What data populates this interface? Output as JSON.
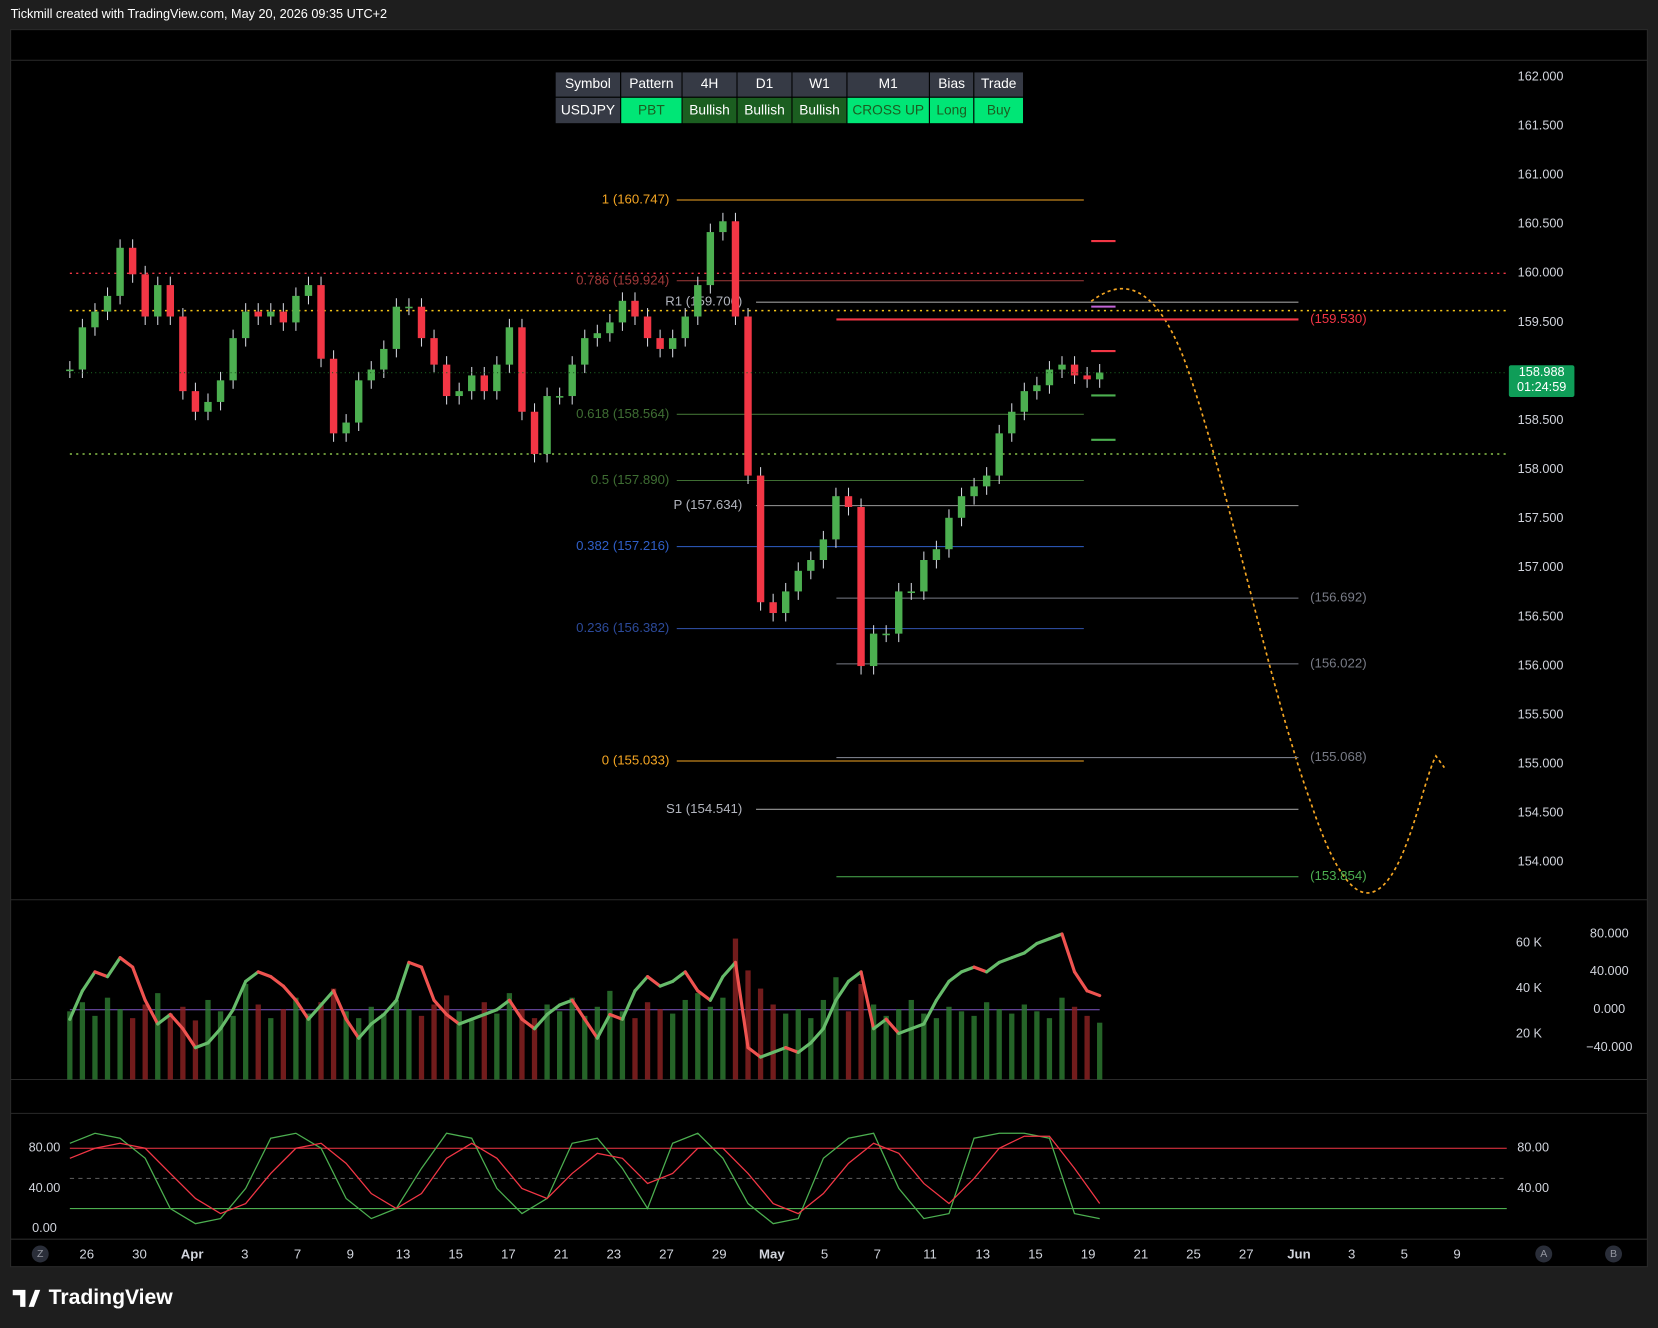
{
  "header": {
    "title": "Tickmill created with TradingView.com, May 20, 2026 09:35 UTC+2"
  },
  "table": {
    "headers": [
      "Symbol",
      "Pattern",
      "4H",
      "D1",
      "W1",
      "M1",
      "Bias",
      "Trade"
    ],
    "rows": [
      [
        "USDJPY",
        "PBT",
        "Bullish",
        "Bullish",
        "Bullish",
        "CROSS UP",
        "Long",
        "Buy"
      ]
    ],
    "cell_colors": [
      "#363a45",
      "#00e676",
      "#1b5e20",
      "#1b5e20",
      "#1b5e20",
      "#00e676",
      "#00e676",
      "#00e676"
    ],
    "text_colors": [
      "#ffffff",
      "#1b5e20",
      "#ffffff",
      "#ffffff",
      "#ffffff",
      "#1b5e20",
      "#1b5e20",
      "#1b5e20"
    ]
  },
  "chart_data": [
    {
      "type": "candlestick",
      "values": [
        159.02,
        159.45,
        159.61,
        159.77,
        160.26,
        159.99,
        159.56,
        159.88,
        159.56,
        158.8,
        158.59,
        158.69,
        158.91,
        159.34,
        159.61,
        159.56,
        159.61,
        159.5,
        159.77,
        159.88,
        159.13,
        158.37,
        158.48,
        158.91,
        159.02,
        159.23,
        159.66,
        159.66,
        159.34,
        159.07,
        158.75,
        158.8,
        158.96,
        158.8,
        159.07,
        159.45,
        158.59,
        158.16,
        158.75,
        158.75,
        159.07,
        159.34,
        159.39,
        159.5,
        159.72,
        159.56,
        159.34,
        159.23,
        159.34,
        159.56,
        159.88,
        160.42,
        160.53,
        159.56,
        157.94,
        156.65,
        156.54,
        156.76,
        156.97,
        157.08,
        157.29,
        157.73,
        157.62,
        156.0,
        156.33,
        156.33,
        156.76,
        156.76,
        157.08,
        157.19,
        157.51,
        157.73,
        157.83,
        157.94,
        158.37,
        158.59,
        158.8,
        158.86,
        159.02,
        159.07,
        158.96,
        158.92,
        158.99
      ],
      "up_color": "#4caf50",
      "down_color": "#f23645",
      "ylim": [
        153.63,
        162.17
      ],
      "yticks": [
        {
          "value": 162,
          "label": "162.000"
        },
        {
          "value": 161.5,
          "label": "161.500"
        },
        {
          "value": 161,
          "label": "161.000"
        },
        {
          "value": 160.5,
          "label": "160.500"
        },
        {
          "value": 160,
          "label": "160.000"
        },
        {
          "value": 159.5,
          "label": "159.500"
        },
        {
          "value": 159,
          "label": "159.000"
        },
        {
          "value": 158.5,
          "label": "158.500"
        },
        {
          "value": 158,
          "label": "158.000"
        },
        {
          "value": 157.5,
          "label": "157.500"
        },
        {
          "value": 157,
          "label": "157.000"
        },
        {
          "value": 156.5,
          "label": "156.500"
        },
        {
          "value": 156,
          "label": "156.000"
        },
        {
          "value": 155.5,
          "label": "155.500"
        },
        {
          "value": 155,
          "label": "155.000"
        },
        {
          "value": 154.5,
          "label": "154.500"
        },
        {
          "value": 154,
          "label": "154.000"
        }
      ],
      "last_price": 158.988,
      "countdown": "01:24:59",
      "last_color": "#0f9d58",
      "fib_levels": [
        {
          "value": 160.747,
          "label": "1 (160.747)",
          "color": "#f5a623"
        },
        {
          "value": 159.924,
          "label": "0.786 (159.924)",
          "color": "#a13a3a"
        },
        {
          "value": 158.564,
          "label": "0.618 (158.564)",
          "color": "#3f6e33"
        },
        {
          "value": 157.89,
          "label": "0.5 (157.890)",
          "color": "#3f6e33"
        },
        {
          "value": 157.216,
          "label": "0.382 (157.216)",
          "color": "#2f5fc8"
        },
        {
          "value": 156.382,
          "label": "0.236 (156.382)",
          "color": "#2c4a9a"
        },
        {
          "value": 155.033,
          "label": "0 (155.033)",
          "color": "#f5a623"
        }
      ],
      "pivots": [
        {
          "value": 159.706,
          "label": "R1 (159.706)"
        },
        {
          "value": 157.634,
          "label": "P (157.634)"
        },
        {
          "value": 154.541,
          "label": "S1 (154.541)"
        }
      ],
      "targets": [
        {
          "value": 159.53,
          "label": "(159.530)",
          "color": "#f23645"
        },
        {
          "value": 156.692,
          "label": "(156.692)",
          "color": "#787b86"
        },
        {
          "value": 156.022,
          "label": "(156.022)",
          "color": "#787b86"
        },
        {
          "value": 155.068,
          "label": "(155.068)",
          "color": "#787b86"
        },
        {
          "value": 153.854,
          "label": "(153.854)",
          "color": "#4caf50"
        }
      ],
      "dotted_levels": [
        {
          "value": 160.0,
          "color": "#f23645"
        },
        {
          "value": 159.62,
          "color": "#f5c518"
        },
        {
          "value": 158.16,
          "color": "#8bc34a"
        }
      ],
      "grid": false
    },
    {
      "type": "bar",
      "values": [
        30000,
        34000,
        28000,
        36000,
        31000,
        27000,
        33000,
        38000,
        29000,
        32000,
        26000,
        35000,
        30000,
        28000,
        42000,
        33000,
        27000,
        31000,
        36000,
        29000,
        34000,
        40000,
        30000,
        27000,
        32000,
        29000,
        35000,
        31000,
        28000,
        33000,
        37000,
        30000,
        26000,
        34000,
        29000,
        38000,
        31000,
        27000,
        33000,
        30000,
        36000,
        28000,
        32000,
        39000,
        30000,
        27000,
        34000,
        31000,
        29000,
        35000,
        38000,
        32000,
        36000,
        62000,
        48000,
        40000,
        33000,
        29000,
        31000,
        27000,
        35000,
        45000,
        30000,
        42000,
        33000,
        28000,
        31000,
        35000,
        29000,
        27000,
        32000,
        30000,
        28000,
        34000,
        31000,
        29000,
        33000,
        30000,
        27000,
        36000,
        32000,
        28000,
        25000
      ],
      "up_color": "#2e7d32",
      "down_color": "#8e2323",
      "ylim": [
        0,
        77200
      ],
      "yticks": [
        {
          "value": 20000,
          "label": "20 K"
        },
        {
          "value": 40000,
          "label": "40 K"
        },
        {
          "value": 60000,
          "label": "60 K"
        }
      ],
      "oscillator": [
        -10,
        20,
        40,
        35,
        55,
        45,
        10,
        -15,
        -5,
        -20,
        -40,
        -35,
        -20,
        0,
        30,
        40,
        35,
        25,
        10,
        -10,
        5,
        20,
        -10,
        -30,
        -15,
        -5,
        10,
        50,
        45,
        10,
        -5,
        -15,
        -10,
        -5,
        0,
        10,
        -10,
        -20,
        -5,
        5,
        10,
        -10,
        -30,
        -5,
        -10,
        20,
        35,
        25,
        30,
        40,
        20,
        10,
        35,
        50,
        -40,
        -50,
        -45,
        -40,
        -45,
        -35,
        -20,
        10,
        30,
        40,
        -20,
        -10,
        -25,
        -20,
        -15,
        10,
        30,
        40,
        45,
        40,
        50,
        55,
        60,
        70,
        75,
        80,
        40,
        20,
        15
      ],
      "osc_up_color": "#66bb6a",
      "osc_down_color": "#ef5350",
      "y2lim": [
        -73.7,
        111.7
      ],
      "y2ticks": [
        {
          "value": 80,
          "label": "80.000"
        },
        {
          "value": 40,
          "label": "40.000"
        },
        {
          "value": 0,
          "label": "0.000"
        },
        {
          "value": -40,
          "label": "−40.000"
        }
      ]
    },
    {
      "type": "line",
      "series": [
        {
          "color": "#4caf50",
          "values": [
            85,
            95,
            90,
            70,
            20,
            5,
            10,
            40,
            90,
            95,
            80,
            30,
            10,
            20,
            60,
            95,
            90,
            40,
            15,
            30,
            85,
            90,
            60,
            20,
            85,
            95,
            70,
            25,
            5,
            10,
            70,
            90,
            95,
            40,
            10,
            15,
            90,
            95,
            95,
            90,
            15,
            10
          ]
        },
        {
          "color": "#f23645",
          "values": [
            70,
            80,
            85,
            80,
            55,
            30,
            15,
            25,
            55,
            80,
            85,
            65,
            35,
            20,
            35,
            70,
            85,
            70,
            40,
            30,
            55,
            75,
            70,
            45,
            55,
            80,
            80,
            55,
            25,
            15,
            35,
            65,
            85,
            75,
            45,
            25,
            50,
            80,
            92,
            92,
            60,
            25
          ]
        }
      ],
      "ylim": [
        -10.5,
        109.5
      ],
      "yticks": [
        {
          "value": 0,
          "label": "0.00"
        },
        {
          "value": 40,
          "label": "40.00"
        },
        {
          "value": 80,
          "label": "80.00"
        }
      ],
      "y2ticks": [
        {
          "value": 80,
          "label": "80.00"
        },
        {
          "value": 40,
          "label": "40.00"
        }
      ],
      "levels": [
        {
          "value": 80,
          "color": "#f23645"
        },
        {
          "value": 50,
          "color": "#555555"
        },
        {
          "value": 20,
          "color": "#4caf50"
        }
      ],
      "date_ticks": [
        "26",
        "30",
        "Apr",
        "3",
        "7",
        "9",
        "13",
        "15",
        "17",
        "21",
        "23",
        "27",
        "29",
        "May",
        "5",
        "7",
        "11",
        "13",
        "15",
        "19",
        "21",
        "25",
        "27",
        "Jun",
        "3",
        "5",
        "9"
      ]
    }
  ],
  "ui": {
    "buttons": [
      "Z",
      "A",
      "B"
    ],
    "logo": "TradingView"
  }
}
